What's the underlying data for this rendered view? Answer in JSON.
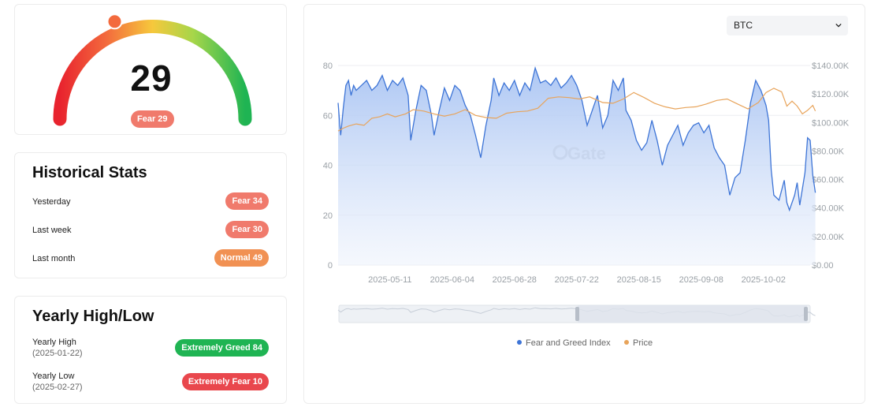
{
  "gauge": {
    "value": "29",
    "label": "Fear 29",
    "level": 29
  },
  "stats": {
    "title": "Historical Stats",
    "rows": [
      {
        "label": "Yesterday",
        "badge": "Fear 34"
      },
      {
        "label": "Last week",
        "badge": "Fear 30"
      },
      {
        "label": "Last month",
        "badge": "Normal 49"
      }
    ]
  },
  "yearly": {
    "title": "Yearly High/Low",
    "high": {
      "label": "Yearly High",
      "date": "(2025-01-22)",
      "badge": "Extremely Greed 84"
    },
    "low": {
      "label": "Yearly Low",
      "date": "(2025-02-27)",
      "badge": "Extremely Fear 10"
    }
  },
  "chart": {
    "asset_select": "BTC",
    "watermark": "Gate",
    "colors": {
      "fear_greed": "#3d74d6",
      "price": "#e8a45b",
      "fear": "#f07a6c",
      "normal": "#f19153",
      "greed": "#1fb453",
      "extreme_fear": "#e9474d"
    }
  },
  "chart_data": {
    "type": "line",
    "x_tick_labels": [
      "2025-05-11",
      "2025-06-04",
      "2025-06-28",
      "2025-07-22",
      "2025-08-15",
      "2025-09-08",
      "2025-10-02"
    ],
    "y_left_ticks": [
      "0",
      "20",
      "40",
      "60",
      "80"
    ],
    "y_right_ticks": [
      "$0.00",
      "$20.00K",
      "$40.00K",
      "$60.00K",
      "$80.00K",
      "$100.00K",
      "$120.00K",
      "$140.00K"
    ],
    "y_left_range": [
      0,
      80
    ],
    "y_right_range": [
      0,
      140000
    ],
    "x_range": [
      "2025-04-21",
      "2025-10-20"
    ],
    "grid": true,
    "legend_position": "bottom",
    "area_fill_series": "Fear and Greed Index",
    "series": [
      {
        "name": "Fear and Greed Index",
        "axis": "left",
        "values": [
          [
            "2025-04-21",
            65
          ],
          [
            "2025-04-22",
            52
          ],
          [
            "2025-04-23",
            63
          ],
          [
            "2025-04-24",
            72
          ],
          [
            "2025-04-25",
            74
          ],
          [
            "2025-04-26",
            68
          ],
          [
            "2025-04-27",
            72
          ],
          [
            "2025-04-28",
            70
          ],
          [
            "2025-04-30",
            72
          ],
          [
            "2025-05-02",
            74
          ],
          [
            "2025-05-04",
            70
          ],
          [
            "2025-05-06",
            72
          ],
          [
            "2025-05-08",
            76
          ],
          [
            "2025-05-10",
            70
          ],
          [
            "2025-05-12",
            74
          ],
          [
            "2025-05-14",
            72
          ],
          [
            "2025-05-16",
            75
          ],
          [
            "2025-05-18",
            68
          ],
          [
            "2025-05-19",
            50
          ],
          [
            "2025-05-21",
            62
          ],
          [
            "2025-05-23",
            72
          ],
          [
            "2025-05-25",
            70
          ],
          [
            "2025-05-27",
            60
          ],
          [
            "2025-05-28",
            52
          ],
          [
            "2025-05-30",
            62
          ],
          [
            "2025-06-01",
            71
          ],
          [
            "2025-06-03",
            66
          ],
          [
            "2025-06-05",
            72
          ],
          [
            "2025-06-07",
            70
          ],
          [
            "2025-06-09",
            64
          ],
          [
            "2025-06-11",
            60
          ],
          [
            "2025-06-13",
            52
          ],
          [
            "2025-06-15",
            43
          ],
          [
            "2025-06-17",
            56
          ],
          [
            "2025-06-19",
            66
          ],
          [
            "2025-06-20",
            75
          ],
          [
            "2025-06-22",
            68
          ],
          [
            "2025-06-24",
            73
          ],
          [
            "2025-06-26",
            70
          ],
          [
            "2025-06-28",
            74
          ],
          [
            "2025-06-30",
            68
          ],
          [
            "2025-07-02",
            73
          ],
          [
            "2025-07-04",
            70
          ],
          [
            "2025-07-06",
            79
          ],
          [
            "2025-07-08",
            73
          ],
          [
            "2025-07-10",
            74
          ],
          [
            "2025-07-12",
            72
          ],
          [
            "2025-07-14",
            75
          ],
          [
            "2025-07-16",
            71
          ],
          [
            "2025-07-18",
            73
          ],
          [
            "2025-07-20",
            76
          ],
          [
            "2025-07-22",
            72
          ],
          [
            "2025-07-24",
            66
          ],
          [
            "2025-07-26",
            56
          ],
          [
            "2025-07-28",
            62
          ],
          [
            "2025-07-30",
            68
          ],
          [
            "2025-08-01",
            55
          ],
          [
            "2025-08-03",
            60
          ],
          [
            "2025-08-05",
            74
          ],
          [
            "2025-08-07",
            70
          ],
          [
            "2025-08-09",
            75
          ],
          [
            "2025-08-10",
            62
          ],
          [
            "2025-08-12",
            58
          ],
          [
            "2025-08-14",
            50
          ],
          [
            "2025-08-16",
            46
          ],
          [
            "2025-08-18",
            49
          ],
          [
            "2025-08-20",
            58
          ],
          [
            "2025-08-22",
            50
          ],
          [
            "2025-08-24",
            40
          ],
          [
            "2025-08-26",
            48
          ],
          [
            "2025-08-28",
            52
          ],
          [
            "2025-08-30",
            56
          ],
          [
            "2025-09-01",
            48
          ],
          [
            "2025-09-03",
            53
          ],
          [
            "2025-09-05",
            56
          ],
          [
            "2025-09-07",
            57
          ],
          [
            "2025-09-09",
            53
          ],
          [
            "2025-09-11",
            56
          ],
          [
            "2025-09-13",
            47
          ],
          [
            "2025-09-15",
            43
          ],
          [
            "2025-09-17",
            40
          ],
          [
            "2025-09-19",
            28
          ],
          [
            "2025-09-21",
            35
          ],
          [
            "2025-09-23",
            37
          ],
          [
            "2025-09-25",
            50
          ],
          [
            "2025-09-27",
            65
          ],
          [
            "2025-09-29",
            74
          ],
          [
            "2025-10-01",
            70
          ],
          [
            "2025-10-03",
            64
          ],
          [
            "2025-10-04",
            58
          ],
          [
            "2025-10-05",
            38
          ],
          [
            "2025-10-06",
            28
          ],
          [
            "2025-10-08",
            26
          ],
          [
            "2025-10-10",
            34
          ],
          [
            "2025-10-11",
            25
          ],
          [
            "2025-10-12",
            22
          ],
          [
            "2025-10-14",
            28
          ],
          [
            "2025-10-15",
            33
          ],
          [
            "2025-10-16",
            24
          ],
          [
            "2025-10-18",
            37
          ],
          [
            "2025-10-19",
            51
          ],
          [
            "2025-10-20",
            50
          ],
          [
            "2025-10-21",
            36
          ],
          [
            "2025-10-22",
            29
          ]
        ]
      },
      {
        "name": "Price",
        "axis": "right",
        "values": [
          [
            "2025-04-21",
            94000
          ],
          [
            "2025-04-23",
            96000
          ],
          [
            "2025-04-25",
            97500
          ],
          [
            "2025-04-28",
            99000
          ],
          [
            "2025-05-01",
            98000
          ],
          [
            "2025-05-04",
            103000
          ],
          [
            "2025-05-07",
            104000
          ],
          [
            "2025-05-10",
            106000
          ],
          [
            "2025-05-13",
            104000
          ],
          [
            "2025-05-17",
            106000
          ],
          [
            "2025-05-20",
            109000
          ],
          [
            "2025-05-24",
            108000
          ],
          [
            "2025-05-28",
            106000
          ],
          [
            "2025-06-01",
            104500
          ],
          [
            "2025-06-05",
            106000
          ],
          [
            "2025-06-09",
            109000
          ],
          [
            "2025-06-13",
            105000
          ],
          [
            "2025-06-17",
            103500
          ],
          [
            "2025-06-21",
            103000
          ],
          [
            "2025-06-25",
            106500
          ],
          [
            "2025-06-29",
            107500
          ],
          [
            "2025-07-03",
            108000
          ],
          [
            "2025-07-07",
            110000
          ],
          [
            "2025-07-11",
            117000
          ],
          [
            "2025-07-15",
            118000
          ],
          [
            "2025-07-19",
            117500
          ],
          [
            "2025-07-23",
            116500
          ],
          [
            "2025-07-27",
            118000
          ],
          [
            "2025-08-01",
            114000
          ],
          [
            "2025-08-05",
            113500
          ],
          [
            "2025-08-09",
            116500
          ],
          [
            "2025-08-13",
            121000
          ],
          [
            "2025-08-17",
            117500
          ],
          [
            "2025-08-21",
            113500
          ],
          [
            "2025-08-25",
            111000
          ],
          [
            "2025-08-29",
            109500
          ],
          [
            "2025-09-02",
            110500
          ],
          [
            "2025-09-06",
            111000
          ],
          [
            "2025-09-10",
            113000
          ],
          [
            "2025-09-14",
            115500
          ],
          [
            "2025-09-18",
            116500
          ],
          [
            "2025-09-22",
            113000
          ],
          [
            "2025-09-26",
            109500
          ],
          [
            "2025-09-30",
            114000
          ],
          [
            "2025-10-03",
            121000
          ],
          [
            "2025-10-06",
            124000
          ],
          [
            "2025-10-09",
            121500
          ],
          [
            "2025-10-11",
            111500
          ],
          [
            "2025-10-13",
            115000
          ],
          [
            "2025-10-15",
            111500
          ],
          [
            "2025-10-17",
            106000
          ],
          [
            "2025-10-19",
            108500
          ],
          [
            "2025-10-21",
            112000
          ],
          [
            "2025-10-22",
            108000
          ]
        ]
      }
    ]
  },
  "legend": {
    "fear_greed": "Fear and Greed Index",
    "price": "Price"
  }
}
